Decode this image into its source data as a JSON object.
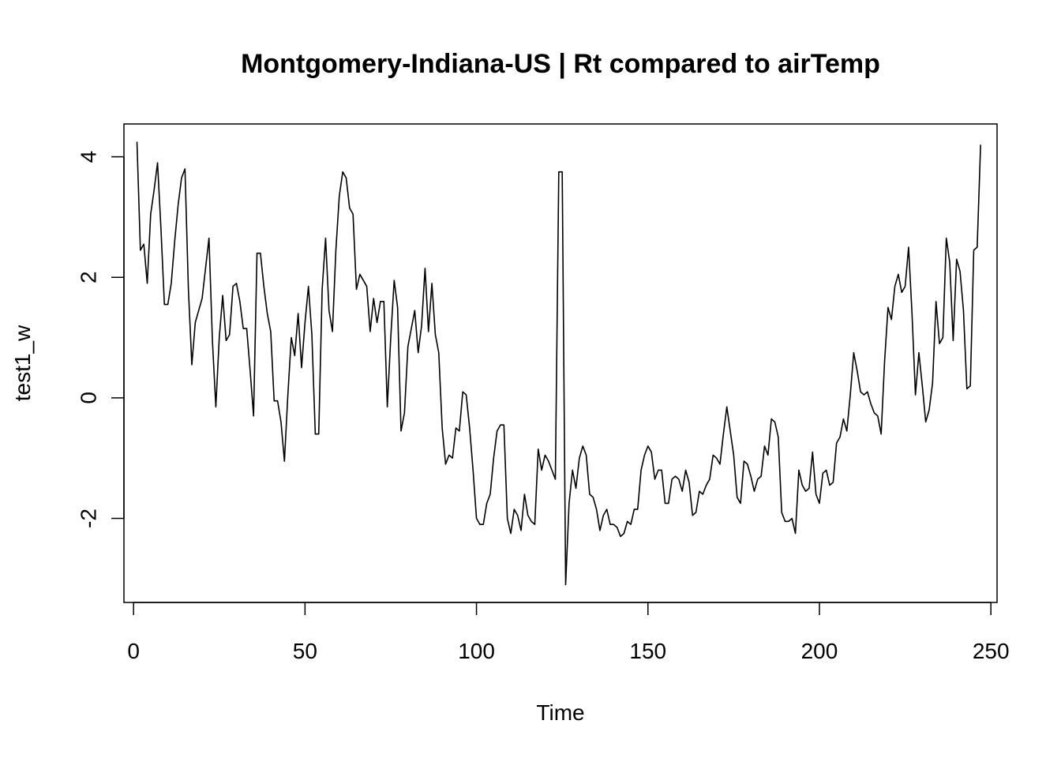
{
  "chart_data": {
    "type": "line",
    "title": "Montgomery-Indiana-US | Rt compared to airTemp",
    "xlabel": "Time",
    "ylabel": "test1_w",
    "xlim": [
      1,
      248
    ],
    "ylim": [
      -3.1,
      4.25
    ],
    "x_ticks": [
      0,
      50,
      100,
      150,
      200,
      250
    ],
    "y_ticks": [
      -2,
      0,
      2,
      4
    ],
    "grid": false,
    "series": [
      {
        "x_start": 1,
        "x_step": 1,
        "values": [
          4.25,
          2.45,
          2.55,
          1.9,
          3.05,
          3.45,
          3.9,
          2.8,
          1.55,
          1.55,
          1.9,
          2.6,
          3.2,
          3.65,
          3.8,
          1.8,
          0.55,
          1.25,
          1.45,
          1.65,
          2.15,
          2.65,
          0.95,
          -0.15,
          1.0,
          1.7,
          0.95,
          1.05,
          1.85,
          1.9,
          1.6,
          1.15,
          1.15,
          0.45,
          -0.3,
          2.4,
          2.4,
          1.85,
          1.4,
          1.1,
          -0.05,
          -0.05,
          -0.4,
          -1.05,
          0.05,
          1.0,
          0.7,
          1.4,
          0.5,
          1.25,
          1.85,
          1.05,
          -0.6,
          -0.6,
          1.8,
          2.65,
          1.45,
          1.1,
          2.45,
          3.35,
          3.75,
          3.65,
          3.15,
          3.05,
          1.8,
          2.05,
          1.95,
          1.85,
          1.1,
          1.65,
          1.25,
          1.6,
          1.6,
          -0.15,
          1.0,
          1.95,
          1.5,
          -0.55,
          -0.25,
          0.85,
          1.15,
          1.45,
          0.75,
          1.2,
          2.15,
          1.1,
          1.9,
          1.05,
          0.75,
          -0.5,
          -1.1,
          -0.95,
          -1.0,
          -0.5,
          -0.55,
          0.1,
          0.05,
          -0.5,
          -1.2,
          -2.0,
          -2.1,
          -2.1,
          -1.75,
          -1.6,
          -1.0,
          -0.55,
          -0.45,
          -0.45,
          -2.0,
          -2.25,
          -1.85,
          -1.95,
          -2.2,
          -1.6,
          -1.95,
          -2.05,
          -2.1,
          -0.85,
          -1.2,
          -0.95,
          -1.05,
          -1.2,
          -1.35,
          3.75,
          3.75,
          -3.1,
          -1.75,
          -1.2,
          -1.5,
          -1.0,
          -0.8,
          -0.95,
          -1.6,
          -1.65,
          -1.85,
          -2.2,
          -1.95,
          -1.85,
          -2.1,
          -2.1,
          -2.15,
          -2.3,
          -2.25,
          -2.05,
          -2.1,
          -1.85,
          -1.85,
          -1.2,
          -0.95,
          -0.8,
          -0.9,
          -1.35,
          -1.2,
          -1.2,
          -1.75,
          -1.75,
          -1.35,
          -1.3,
          -1.35,
          -1.55,
          -1.2,
          -1.4,
          -1.95,
          -1.9,
          -1.55,
          -1.6,
          -1.45,
          -1.35,
          -0.95,
          -1.0,
          -1.1,
          -0.6,
          -0.15,
          -0.55,
          -0.95,
          -1.65,
          -1.75,
          -1.05,
          -1.1,
          -1.3,
          -1.55,
          -1.35,
          -1.3,
          -0.8,
          -0.95,
          -0.35,
          -0.4,
          -0.65,
          -1.9,
          -2.05,
          -2.05,
          -2.0,
          -2.25,
          -1.2,
          -1.45,
          -1.55,
          -1.5,
          -0.9,
          -1.6,
          -1.75,
          -1.25,
          -1.2,
          -1.45,
          -1.4,
          -0.75,
          -0.65,
          -0.35,
          -0.55,
          0.05,
          0.75,
          0.45,
          0.1,
          0.05,
          0.1,
          -0.1,
          -0.25,
          -0.3,
          -0.6,
          0.6,
          1.5,
          1.3,
          1.85,
          2.05,
          1.75,
          1.85,
          2.5,
          1.4,
          0.05,
          0.75,
          0.2,
          -0.4,
          -0.2,
          0.25,
          1.6,
          0.9,
          1.0,
          2.65,
          2.25,
          0.95,
          2.3,
          2.1,
          1.45,
          0.15,
          0.2,
          2.45,
          2.5,
          4.2
        ]
      }
    ]
  }
}
